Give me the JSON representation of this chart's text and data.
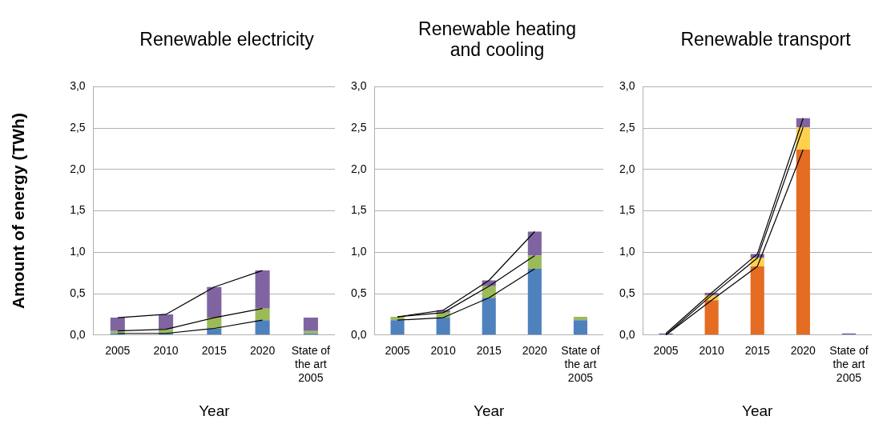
{
  "chart_data": [
    {
      "type": "bar",
      "title": "Renewable electricity",
      "xlabel": "Year",
      "ylabel": "Amount of energy (TWh)",
      "categories": [
        "2005",
        "2010",
        "2015",
        "2020",
        "State of the art 2005"
      ],
      "stacked": true,
      "ylim": [
        0,
        3
      ],
      "yticks": [
        {
          "value": 0,
          "label": "0,0"
        },
        {
          "value": 0.5,
          "label": "0,5"
        },
        {
          "value": 1,
          "label": "1,0"
        },
        {
          "value": 1.5,
          "label": "1,5"
        },
        {
          "value": 2,
          "label": "2,0"
        },
        {
          "value": 2.5,
          "label": "2,5"
        },
        {
          "value": 3,
          "label": "3,0"
        }
      ],
      "grid": "y",
      "marker": "none",
      "series": [
        {
          "color": "#4f81bd",
          "values": [
            0.02,
            0.02,
            0.08,
            0.18,
            0.02
          ]
        },
        {
          "color": "#9bbb59",
          "values": [
            0.03,
            0.05,
            0.13,
            0.14,
            0.03
          ]
        },
        {
          "color": "#8064a2",
          "values": [
            0.16,
            0.18,
            0.37,
            0.46,
            0.16
          ]
        },
        {
          "type": "line",
          "color": "#000000",
          "values": [
            0.02,
            0.02,
            0.08,
            0.18,
            null
          ]
        },
        {
          "type": "line",
          "color": "#000000",
          "values": [
            0.05,
            0.07,
            0.21,
            0.32,
            null
          ]
        },
        {
          "type": "line",
          "color": "#000000",
          "values": [
            0.21,
            0.25,
            0.58,
            0.78,
            null
          ]
        }
      ]
    },
    {
      "type": "bar",
      "title": "Renewable heating and cooling",
      "xlabel": "Year",
      "categories": [
        "2005",
        "2010",
        "2015",
        "2020",
        "State of the art 2005"
      ],
      "stacked": true,
      "ylim": [
        0,
        3
      ],
      "yticks": [
        {
          "value": 0,
          "label": "0,0"
        },
        {
          "value": 0.5,
          "label": "0,5"
        },
        {
          "value": 1,
          "label": "1,0"
        },
        {
          "value": 1.5,
          "label": "1,5"
        },
        {
          "value": 2,
          "label": "2,0"
        },
        {
          "value": 2.5,
          "label": "2,5"
        },
        {
          "value": 3,
          "label": "3,0"
        }
      ],
      "grid": "y",
      "marker": "none",
      "series": [
        {
          "color": "#4f81bd",
          "values": [
            0.18,
            0.21,
            0.45,
            0.8,
            0.18
          ]
        },
        {
          "color": "#9bbb59",
          "values": [
            0.04,
            0.06,
            0.14,
            0.16,
            0.04
          ]
        },
        {
          "color": "#8064a2",
          "values": [
            0,
            0.03,
            0.07,
            0.29,
            0
          ]
        },
        {
          "type": "line",
          "color": "#000000",
          "values": [
            0.18,
            0.21,
            0.45,
            0.8,
            null
          ]
        },
        {
          "type": "line",
          "color": "#000000",
          "values": [
            0.22,
            0.27,
            0.59,
            0.96,
            null
          ]
        },
        {
          "type": "line",
          "color": "#000000",
          "values": [
            0.22,
            0.3,
            0.66,
            1.25,
            null
          ]
        }
      ]
    },
    {
      "type": "bar",
      "title": "Renewable transport",
      "xlabel": "Year",
      "categories": [
        "2005",
        "2010",
        "2015",
        "2020",
        "State of the art 2005"
      ],
      "stacked": true,
      "ylim": [
        0,
        3
      ],
      "yticks": [
        {
          "value": 0,
          "label": "0,0"
        },
        {
          "value": 0.5,
          "label": "0,5"
        },
        {
          "value": 1,
          "label": "1,0"
        },
        {
          "value": 1.5,
          "label": "1,5"
        },
        {
          "value": 2,
          "label": "2,0"
        },
        {
          "value": 2.5,
          "label": "2,5"
        },
        {
          "value": 3,
          "label": "3,0"
        }
      ],
      "grid": "y",
      "marker": "none",
      "series": [
        {
          "color": "#e46c23",
          "values": [
            null,
            0.42,
            0.83,
            2.24,
            null
          ]
        },
        {
          "color": "#fdd14f",
          "values": [
            0,
            0.06,
            0.1,
            0.27,
            0
          ]
        },
        {
          "color": "#8064a2",
          "values": [
            0.02,
            0.03,
            0.05,
            0.11,
            0.02
          ]
        },
        {
          "type": "line",
          "color": "#000000",
          "values": [
            0,
            0.42,
            0.83,
            2.24,
            null
          ]
        },
        {
          "type": "line",
          "color": "#000000",
          "values": [
            0,
            0.48,
            0.93,
            2.51,
            null
          ]
        },
        {
          "type": "line",
          "color": "#000000",
          "values": [
            0.02,
            0.51,
            0.98,
            2.62,
            null
          ]
        }
      ]
    }
  ]
}
